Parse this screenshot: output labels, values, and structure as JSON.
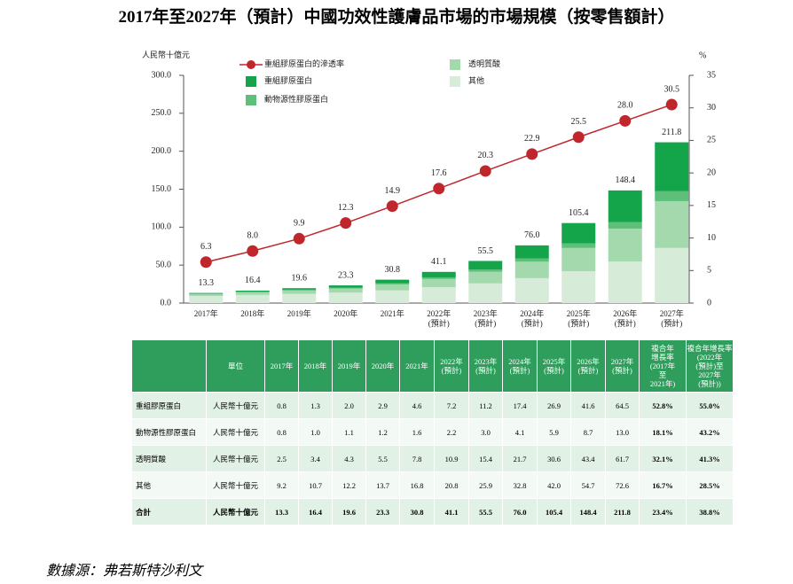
{
  "chart_data": {
    "type": "bar",
    "stacked": true,
    "title": "2017年至2027年（預計）中國功效性護膚品市場的市場規模（按零售額計）",
    "y_label": "人民幣十億元",
    "y2_label": "%",
    "categories": [
      "2017年",
      "2018年",
      "2019年",
      "2020年",
      "2021年",
      "2022年\n(預計)",
      "2023年\n(預計)",
      "2024年\n(預計)",
      "2025年\n(預計)",
      "2026年\n(預計)",
      "2027年\n(預計)"
    ],
    "series": [
      {
        "name": "重組膠原蛋白的滲透率",
        "type": "line",
        "axis": "y2",
        "color": "#c0272d",
        "values": [
          6.3,
          8.0,
          9.9,
          12.3,
          14.9,
          17.6,
          20.3,
          22.9,
          25.5,
          28.0,
          30.5
        ],
        "value_labels": [
          "6.3",
          "8.0",
          "9.9",
          "12.3",
          "14.9",
          "17.6",
          "20.3",
          "22.9",
          "25.5",
          "28.0",
          "30.5"
        ]
      },
      {
        "name": "重組膠原蛋白",
        "color": "#14a54b",
        "values": [
          0.8,
          1.3,
          2.0,
          2.9,
          4.6,
          7.2,
          11.2,
          17.4,
          26.9,
          41.6,
          64.5
        ]
      },
      {
        "name": "動物源性膠原蛋白",
        "color": "#5dbf7a",
        "values": [
          0.8,
          1.0,
          1.1,
          1.2,
          1.6,
          2.2,
          3.0,
          4.1,
          5.9,
          8.7,
          13.0
        ]
      },
      {
        "name": "透明質酸",
        "color": "#a4d9ae",
        "values": [
          2.5,
          3.4,
          4.3,
          5.5,
          7.8,
          10.9,
          15.4,
          21.7,
          30.6,
          43.4,
          61.7
        ]
      },
      {
        "name": "其他",
        "color": "#d6ecd9",
        "values": [
          9.2,
          10.7,
          12.2,
          13.7,
          16.8,
          20.8,
          25.9,
          32.8,
          42.0,
          54.7,
          72.6
        ]
      }
    ],
    "totals": {
      "values": [
        13.3,
        16.4,
        19.6,
        23.3,
        30.8,
        41.1,
        55.5,
        76.0,
        105.4,
        148.4,
        211.8
      ],
      "value_labels": [
        "13.3",
        "16.4",
        "19.6",
        "23.3",
        "30.8",
        "41.1",
        "55.5",
        "76.0",
        "105.4",
        "148.4",
        "211.8"
      ]
    },
    "ylim": [
      0,
      300
    ],
    "yticks": [
      {
        "value": 0,
        "label": "0.0"
      },
      {
        "value": 50,
        "label": "50.0"
      },
      {
        "value": 100,
        "label": "100.0"
      },
      {
        "value": 150,
        "label": "150.0"
      },
      {
        "value": 200,
        "label": "200.0"
      },
      {
        "value": 250,
        "label": "250.0"
      },
      {
        "value": 300,
        "label": "300.0"
      }
    ],
    "y2lim": [
      0,
      35
    ],
    "y2ticks": [
      0,
      5,
      10,
      15,
      20,
      25,
      30,
      35
    ]
  },
  "table": {
    "header": [
      null,
      "單位",
      "2017年",
      "2018年",
      "2019年",
      "2020年",
      "2021年",
      "2022年\n(預計)",
      "2023年\n(預計)",
      "2024年\n(預計)",
      "2025年\n(預計)",
      "2026年\n(預計)",
      "2027年\n(預計)",
      "複合年\n增長率\n(2017年\n至\n2021年)",
      "複合年增長率\n(2022年\n(預計)至\n2027年\n(預計))"
    ],
    "rows": [
      [
        "重組膠原蛋白",
        "人民幣十億元",
        "0.8",
        "1.3",
        "2.0",
        "2.9",
        "4.6",
        "7.2",
        "11.2",
        "17.4",
        "26.9",
        "41.6",
        "64.5",
        "52.8%",
        "55.0%"
      ],
      [
        "動物源性膠原蛋白",
        "人民幣十億元",
        "0.8",
        "1.0",
        "1.1",
        "1.2",
        "1.6",
        "2.2",
        "3.0",
        "4.1",
        "5.9",
        "8.7",
        "13.0",
        "18.1%",
        "43.2%"
      ],
      [
        "透明質酸",
        "人民幣十億元",
        "2.5",
        "3.4",
        "4.3",
        "5.5",
        "7.8",
        "10.9",
        "15.4",
        "21.7",
        "30.6",
        "43.4",
        "61.7",
        "32.1%",
        "41.3%"
      ],
      [
        "其他",
        "人民幣十億元",
        "9.2",
        "10.7",
        "12.2",
        "13.7",
        "16.8",
        "20.8",
        "25.9",
        "32.8",
        "42.0",
        "54.7",
        "72.6",
        "16.7%",
        "28.5%"
      ],
      [
        "合計",
        "人民幣十億元",
        "13.3",
        "16.4",
        "19.6",
        "23.3",
        "30.8",
        "41.1",
        "55.5",
        "76.0",
        "105.4",
        "148.4",
        "211.8",
        "23.4%",
        "38.8%"
      ]
    ]
  },
  "source": "數據源：弗若斯特沙利文"
}
